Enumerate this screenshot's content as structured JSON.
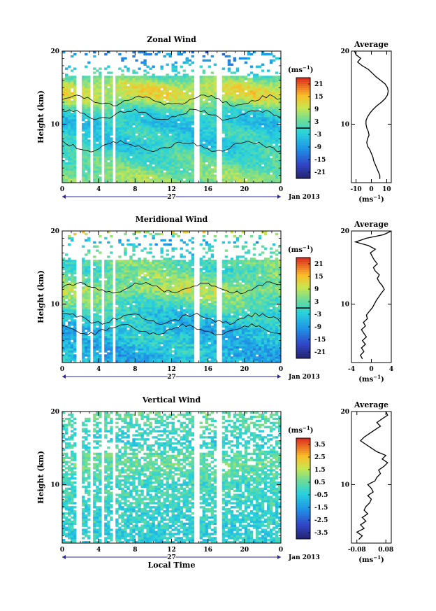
{
  "chart_data": [
    {
      "type": "heatmap",
      "title": "Zonal Wind",
      "ylabel": "Height (km)",
      "ylim": [
        2,
        20
      ],
      "xlim": [
        0,
        24
      ],
      "x_ticks": [
        "0",
        "4",
        "8",
        "12",
        "16",
        "20",
        "0"
      ],
      "y_ticks": [
        "10",
        "20"
      ],
      "day_label": "27",
      "date_label": "Jan 2013",
      "colorbar": {
        "unit": "(ms",
        "unit_sup": "−1",
        "unit_close": ")",
        "ticks": [
          "21",
          "15",
          "9",
          "3",
          "-3",
          "-9",
          "-15",
          "-21"
        ],
        "range": [
          -24,
          24
        ],
        "contour_at": 0
      },
      "gaps_local_time": [
        [
          1.6,
          2.2
        ],
        [
          3.0,
          3.3
        ],
        [
          4.3,
          4.6
        ],
        [
          5.4,
          5.9
        ],
        [
          14.6,
          15.2
        ],
        [
          16.9,
          17.4
        ]
      ],
      "profile": {
        "title": "Average",
        "xlabel": "(ms",
        "xlabel_sup": "−1",
        "xlabel_close": ")",
        "x_ticks": [
          "-10",
          "0",
          "10"
        ],
        "xlim": [
          -13,
          13
        ],
        "height_km": [
          2.5,
          3.0,
          3.5,
          4.0,
          4.5,
          5.0,
          5.5,
          6.0,
          6.5,
          7.0,
          7.5,
          8.0,
          8.5,
          9.0,
          9.5,
          10.0,
          10.5,
          11.0,
          11.5,
          12.0,
          12.5,
          13.0,
          13.5,
          14.0,
          14.5,
          15.0,
          15.5,
          16.0,
          16.5,
          17.0,
          17.5,
          18.0,
          18.5,
          19.0,
          19.5,
          20.0
        ],
        "wind": [
          5.5,
          5.5,
          4.5,
          3.5,
          2.5,
          1.5,
          1.0,
          0.0,
          -1.0,
          -2.5,
          -3.0,
          -2.5,
          -1.5,
          -2.0,
          -3.0,
          -3.5,
          -3.5,
          -2.5,
          -1.0,
          1.0,
          3.5,
          6.5,
          9.0,
          10.5,
          11.0,
          10.5,
          9.0,
          6.0,
          3.0,
          0.5,
          -2.0,
          -6.0,
          -9.0,
          -7.0,
          -10.0,
          -11.0
        ]
      }
    },
    {
      "type": "heatmap",
      "title": "Meridional Wind",
      "ylabel": "Height (km)",
      "ylim": [
        2,
        20
      ],
      "xlim": [
        0,
        24
      ],
      "x_ticks": [
        "0",
        "4",
        "8",
        "12",
        "16",
        "20",
        "0"
      ],
      "y_ticks": [
        "10",
        "20"
      ],
      "day_label": "27",
      "date_label": "Jan 2013",
      "colorbar": {
        "unit": "(ms",
        "unit_sup": "−1",
        "unit_close": ")",
        "ticks": [
          "21",
          "15",
          "9",
          "3",
          "-3",
          "-9",
          "-15",
          "-21"
        ],
        "range": [
          -24,
          24
        ],
        "contour_at": 0
      },
      "gaps_local_time": [
        [
          1.6,
          2.2
        ],
        [
          3.0,
          3.3
        ],
        [
          4.3,
          4.6
        ],
        [
          5.4,
          5.9
        ],
        [
          14.6,
          15.2
        ],
        [
          16.9,
          17.4
        ]
      ],
      "profile": {
        "title": "Average",
        "xlabel": "(ms",
        "xlabel_sup": "−1",
        "xlabel_close": ")",
        "x_ticks": [
          "-4",
          "0",
          "4"
        ],
        "xlim": [
          -4,
          4
        ],
        "height_km": [
          2.5,
          3.0,
          3.5,
          4.0,
          4.5,
          5.0,
          5.5,
          6.0,
          6.5,
          7.0,
          7.5,
          8.0,
          8.5,
          9.0,
          9.5,
          10.0,
          10.5,
          11.0,
          11.5,
          12.0,
          12.5,
          13.0,
          13.5,
          14.0,
          14.5,
          15.0,
          15.5,
          16.0,
          16.5,
          17.0,
          17.5,
          18.0,
          18.5,
          19.0,
          19.5,
          20.0
        ],
        "wind": [
          -1.8,
          -2.2,
          -1.5,
          -2.0,
          -1.2,
          -1.8,
          -1.0,
          -1.5,
          -2.0,
          -1.2,
          -1.6,
          -0.8,
          -1.0,
          -0.4,
          0.2,
          0.6,
          1.0,
          1.5,
          2.0,
          2.6,
          2.2,
          1.6,
          1.2,
          1.6,
          0.8,
          0.4,
          1.2,
          0.6,
          0.2,
          -0.2,
          0.8,
          -0.6,
          -3.2,
          -1.0,
          2.5,
          4.0
        ]
      }
    },
    {
      "type": "heatmap",
      "title": "Vertical Wind",
      "ylabel": "Height (km)",
      "xlabel": "Local Time",
      "ylim": [
        2,
        20
      ],
      "xlim": [
        0,
        24
      ],
      "x_ticks": [
        "0",
        "4",
        "8",
        "12",
        "16",
        "20",
        "0"
      ],
      "y_ticks": [
        "10",
        "20"
      ],
      "day_label": "27",
      "date_label": "Jan 2013",
      "colorbar": {
        "unit": "(ms",
        "unit_sup": "−1",
        "unit_close": ")",
        "ticks": [
          "3.5",
          "2.5",
          "1.5",
          "0.5",
          "-0.5",
          "-1.5",
          "-2.5",
          "-3.5"
        ],
        "range": [
          -4,
          4
        ]
      },
      "gaps_local_time": [
        [
          1.6,
          2.2
        ],
        [
          3.0,
          3.3
        ],
        [
          4.3,
          4.6
        ],
        [
          5.4,
          5.9
        ],
        [
          14.6,
          15.2
        ],
        [
          16.9,
          17.4
        ]
      ],
      "profile": {
        "title": "Average",
        "xlabel": "(ms",
        "xlabel_sup": "−1",
        "xlabel_close": ")",
        "x_ticks": [
          "-0.08",
          "0.08"
        ],
        "xlim": [
          -0.11,
          0.11
        ],
        "height_km": [
          2.5,
          3.0,
          3.5,
          4.0,
          4.5,
          5.0,
          5.5,
          6.0,
          6.5,
          7.0,
          7.5,
          8.0,
          8.5,
          9.0,
          9.5,
          10.0,
          10.5,
          11.0,
          11.5,
          12.0,
          12.5,
          13.0,
          13.5,
          14.0,
          14.5,
          15.0,
          15.5,
          16.0,
          16.5,
          17.0,
          17.5,
          18.0,
          18.5,
          19.0,
          19.5,
          20.0
        ],
        "wind": [
          -0.07,
          -0.05,
          -0.08,
          -0.04,
          -0.06,
          -0.03,
          -0.05,
          -0.02,
          -0.04,
          -0.03,
          -0.01,
          0.0,
          -0.02,
          0.01,
          0.0,
          -0.02,
          0.02,
          0.03,
          0.05,
          0.04,
          0.07,
          0.09,
          0.06,
          0.08,
          0.03,
          0.0,
          -0.03,
          -0.06,
          -0.04,
          -0.01,
          0.02,
          0.05,
          0.03,
          0.06,
          0.09,
          0.08
        ]
      }
    }
  ]
}
